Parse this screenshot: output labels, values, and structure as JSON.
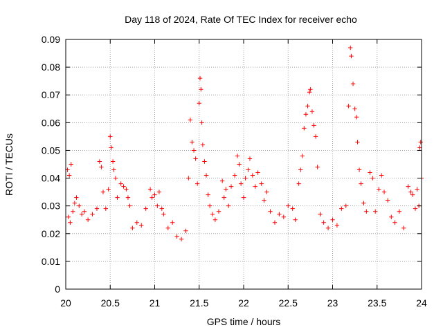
{
  "chart_data": {
    "type": "scatter",
    "title": "Day 118 of 2024, Rate Of TEC Index for receiver echo",
    "xlabel": "GPS time / hours",
    "ylabel": "ROTI / TECUs",
    "xlim": [
      20,
      24
    ],
    "ylim": [
      0,
      0.09
    ],
    "x_ticks": [
      20,
      20.5,
      21,
      21.5,
      22,
      22.5,
      23,
      23.5,
      24
    ],
    "x_tick_labels": [
      "20",
      "20.5",
      "21",
      "21.5",
      "22",
      "22.5",
      "23",
      "23.5",
      "24"
    ],
    "y_ticks": [
      0,
      0.01,
      0.02,
      0.03,
      0.04,
      0.05,
      0.06,
      0.07,
      0.08,
      0.09
    ],
    "y_tick_labels": [
      "0",
      "0.01",
      "0.02",
      "0.03",
      "0.04",
      "0.05",
      "0.06",
      "0.07",
      "0.08",
      "0.09"
    ],
    "grid": true,
    "marker": "+",
    "marker_color": "#ff0000",
    "series": [
      {
        "points": [
          [
            20.02,
            0.043
          ],
          [
            20.04,
            0.041
          ],
          [
            20.06,
            0.045
          ],
          [
            20.03,
            0.026
          ],
          [
            20.05,
            0.024
          ],
          [
            20.08,
            0.028
          ],
          [
            20.1,
            0.031
          ],
          [
            20.12,
            0.033
          ],
          [
            20.15,
            0.03
          ],
          [
            20.18,
            0.027
          ],
          [
            20.21,
            0.028
          ],
          [
            20.25,
            0.025
          ],
          [
            20.3,
            0.027
          ],
          [
            20.35,
            0.029
          ],
          [
            20.38,
            0.046
          ],
          [
            20.4,
            0.044
          ],
          [
            20.42,
            0.035
          ],
          [
            20.45,
            0.029
          ],
          [
            20.48,
            0.036
          ],
          [
            20.5,
            0.055
          ],
          [
            20.51,
            0.051
          ],
          [
            20.53,
            0.046
          ],
          [
            20.54,
            0.043
          ],
          [
            20.56,
            0.04
          ],
          [
            20.58,
            0.033
          ],
          [
            20.62,
            0.038
          ],
          [
            20.65,
            0.037
          ],
          [
            20.68,
            0.036
          ],
          [
            20.7,
            0.033
          ],
          [
            20.72,
            0.03
          ],
          [
            20.75,
            0.022
          ],
          [
            20.8,
            0.024
          ],
          [
            20.85,
            0.023
          ],
          [
            20.9,
            0.029
          ],
          [
            20.95,
            0.036
          ],
          [
            20.97,
            0.033
          ],
          [
            21.0,
            0.034
          ],
          [
            21.03,
            0.03
          ],
          [
            21.05,
            0.035
          ],
          [
            21.08,
            0.029
          ],
          [
            21.1,
            0.027
          ],
          [
            21.15,
            0.022
          ],
          [
            21.2,
            0.024
          ],
          [
            21.25,
            0.019
          ],
          [
            21.3,
            0.018
          ],
          [
            21.35,
            0.021
          ],
          [
            21.38,
            0.04
          ],
          [
            21.4,
            0.061
          ],
          [
            21.42,
            0.053
          ],
          [
            21.44,
            0.05
          ],
          [
            21.46,
            0.047
          ],
          [
            21.48,
            0.038
          ],
          [
            21.5,
            0.067
          ],
          [
            21.51,
            0.076
          ],
          [
            21.52,
            0.072
          ],
          [
            21.53,
            0.06
          ],
          [
            21.54,
            0.052
          ],
          [
            21.56,
            0.046
          ],
          [
            21.58,
            0.041
          ],
          [
            21.6,
            0.034
          ],
          [
            21.62,
            0.03
          ],
          [
            21.65,
            0.027
          ],
          [
            21.68,
            0.025
          ],
          [
            21.72,
            0.028
          ],
          [
            21.76,
            0.039
          ],
          [
            21.78,
            0.033
          ],
          [
            21.8,
            0.036
          ],
          [
            21.83,
            0.03
          ],
          [
            21.86,
            0.037
          ],
          [
            21.9,
            0.041
          ],
          [
            21.93,
            0.048
          ],
          [
            21.95,
            0.045
          ],
          [
            21.97,
            0.038
          ],
          [
            22.0,
            0.033
          ],
          [
            22.02,
            0.04
          ],
          [
            22.05,
            0.043
          ],
          [
            22.07,
            0.047
          ],
          [
            22.1,
            0.041
          ],
          [
            22.13,
            0.037
          ],
          [
            22.16,
            0.042
          ],
          [
            22.2,
            0.038
          ],
          [
            22.23,
            0.032
          ],
          [
            22.26,
            0.035
          ],
          [
            22.3,
            0.028
          ],
          [
            22.35,
            0.024
          ],
          [
            22.4,
            0.027
          ],
          [
            22.45,
            0.026
          ],
          [
            22.5,
            0.03
          ],
          [
            22.55,
            0.029
          ],
          [
            22.58,
            0.025
          ],
          [
            22.62,
            0.038
          ],
          [
            22.64,
            0.043
          ],
          [
            22.66,
            0.048
          ],
          [
            22.68,
            0.058
          ],
          [
            22.7,
            0.063
          ],
          [
            22.72,
            0.066
          ],
          [
            22.74,
            0.071
          ],
          [
            22.75,
            0.072
          ],
          [
            22.77,
            0.064
          ],
          [
            22.79,
            0.059
          ],
          [
            22.81,
            0.055
          ],
          [
            22.83,
            0.044
          ],
          [
            22.86,
            0.027
          ],
          [
            22.9,
            0.024
          ],
          [
            22.95,
            0.022
          ],
          [
            23.0,
            0.025
          ],
          [
            23.05,
            0.023
          ],
          [
            23.1,
            0.029
          ],
          [
            23.15,
            0.03
          ],
          [
            23.18,
            0.066
          ],
          [
            23.2,
            0.087
          ],
          [
            23.21,
            0.084
          ],
          [
            23.23,
            0.074
          ],
          [
            23.25,
            0.065
          ],
          [
            23.27,
            0.062
          ],
          [
            23.28,
            0.053
          ],
          [
            23.3,
            0.043
          ],
          [
            23.32,
            0.038
          ],
          [
            23.35,
            0.031
          ],
          [
            23.38,
            0.028
          ],
          [
            23.42,
            0.042
          ],
          [
            23.45,
            0.04
          ],
          [
            23.48,
            0.028
          ],
          [
            23.52,
            0.036
          ],
          [
            23.55,
            0.041
          ],
          [
            23.58,
            0.035
          ],
          [
            23.62,
            0.032
          ],
          [
            23.66,
            0.026
          ],
          [
            23.7,
            0.024
          ],
          [
            23.75,
            0.028
          ],
          [
            23.8,
            0.022
          ],
          [
            23.85,
            0.037
          ],
          [
            23.88,
            0.035
          ],
          [
            23.9,
            0.034
          ],
          [
            23.93,
            0.029
          ],
          [
            23.95,
            0.036
          ],
          [
            23.97,
            0.03
          ],
          [
            23.98,
            0.051
          ],
          [
            23.99,
            0.053
          ],
          [
            24.0,
            0.04
          ]
        ]
      }
    ]
  }
}
